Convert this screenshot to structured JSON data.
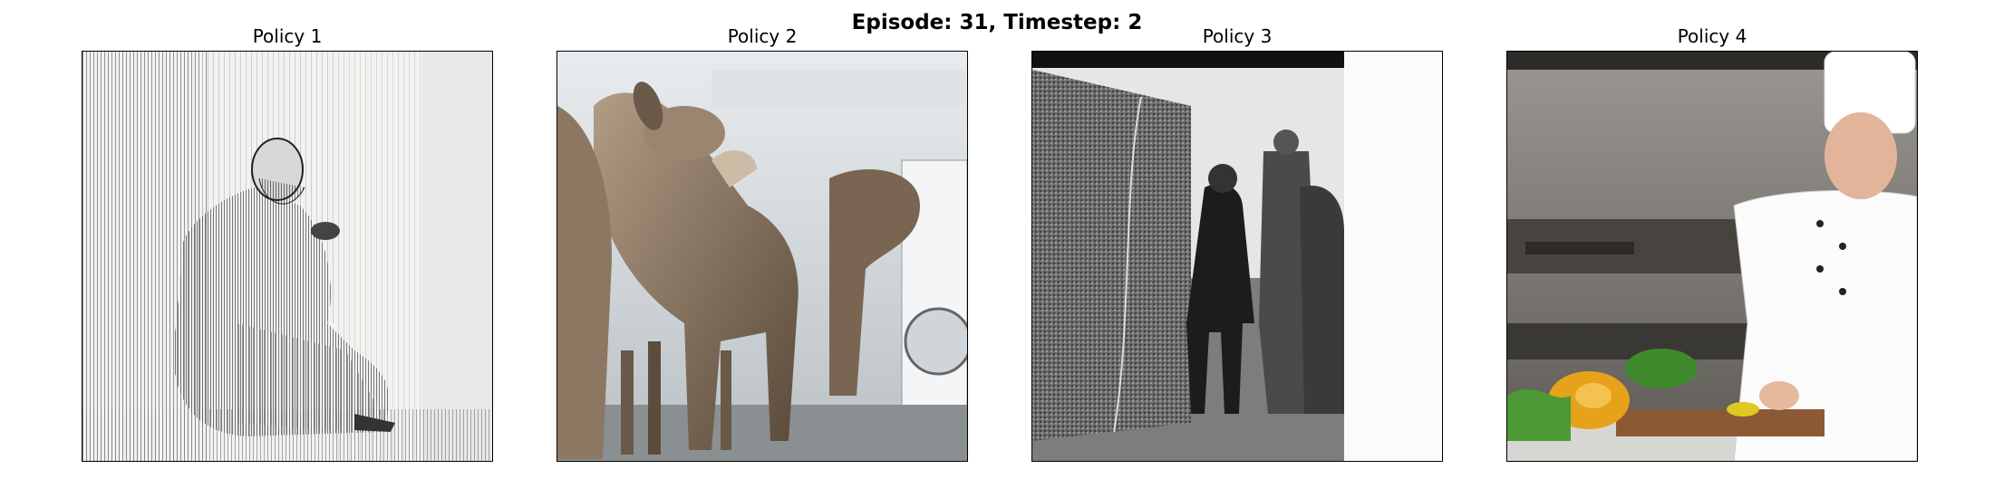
{
  "figure": {
    "title": "Episode: 31, Timestep: 2"
  },
  "panels": [
    {
      "title": "Policy 1"
    },
    {
      "title": "Policy 2"
    },
    {
      "title": "Policy 3"
    },
    {
      "title": "Policy 4"
    }
  ]
}
